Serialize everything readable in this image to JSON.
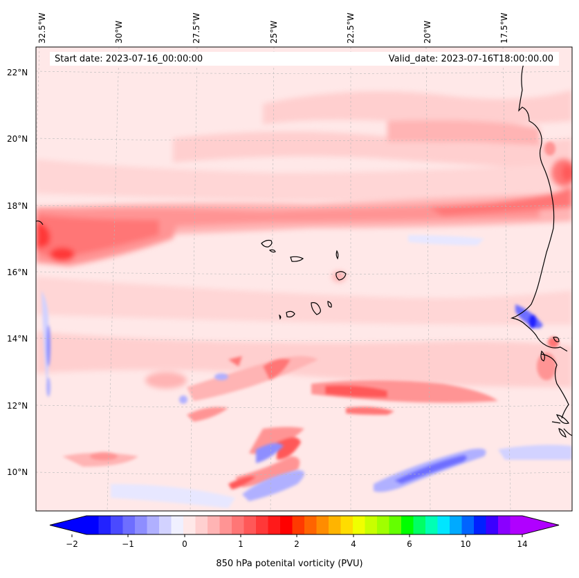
{
  "map": {
    "start_date_label": "Start date: 2023-07-16_00:00:00",
    "valid_date_label": "Valid_date: 2023-07-16T18:00:00.00",
    "lon_ticks": [
      "32.5°W",
      "30°W",
      "27.5°W",
      "25°W",
      "22.5°W",
      "20°W",
      "17.5°W"
    ],
    "lat_ticks": [
      "22°N",
      "20°N",
      "18°N",
      "16°N",
      "14°N",
      "12°N",
      "10°N"
    ],
    "colors": {
      "background": "#ffe8e8",
      "light_red": "#ffcfcf",
      "mid_red": "#ff9e9e",
      "strong_red": "#ff5a5a",
      "blue_light": "#e7e7ff",
      "blue_strong": "#4444ff"
    }
  },
  "colorbar": {
    "title": "850 hPa potenital vorticity (PVU)",
    "tick_labels": [
      "−2",
      "−1",
      "0",
      "1",
      "2",
      "4",
      "6",
      "10",
      "14"
    ],
    "colors": [
      "#0000ff",
      "#2222ff",
      "#4a4aff",
      "#6e6eff",
      "#8e8eff",
      "#b0b0ff",
      "#d2d2ff",
      "#f0f0ff",
      "#ffe8e8",
      "#ffd0d0",
      "#ffb4b4",
      "#ff9494",
      "#ff7676",
      "#ff5858",
      "#ff3838",
      "#ff1a1a",
      "#ff0000",
      "#ff3a00",
      "#ff6400",
      "#ff8c00",
      "#ffb400",
      "#ffdc00",
      "#f0ff00",
      "#c8ff00",
      "#a0ff00",
      "#64ff00",
      "#00ff00",
      "#00ff64",
      "#00ffb4",
      "#00e6ff",
      "#00aaff",
      "#0064ff",
      "#0020ff",
      "#3a00ff",
      "#8a00ff",
      "#b000ff"
    ]
  }
}
